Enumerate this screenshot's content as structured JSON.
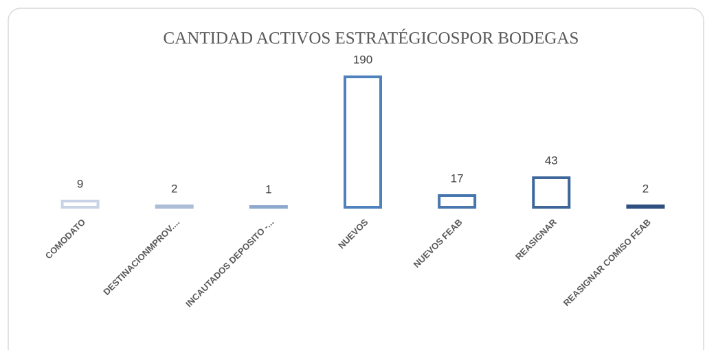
{
  "chart_data": {
    "type": "bar",
    "title": "CANTIDAD ACTIVOS ESTRATÉGICOSPOR BODEGAS",
    "categories": [
      "COMODATO",
      "DESTINACIONMPROV....",
      "INCAUTADOS DEPOSITO -...",
      "NUEVOS",
      "NUEVOS FEAB",
      "REASIGNAR",
      "REASIGNAR COMISO FEAB"
    ],
    "values": [
      9,
      2,
      1,
      190,
      17,
      43,
      2
    ],
    "colors": [
      "#c9d3e6",
      "#adbdd8",
      "#8fa8cd",
      "#4f81bd",
      "#4877ad",
      "#3e6699",
      "#2d5080"
    ]
  }
}
